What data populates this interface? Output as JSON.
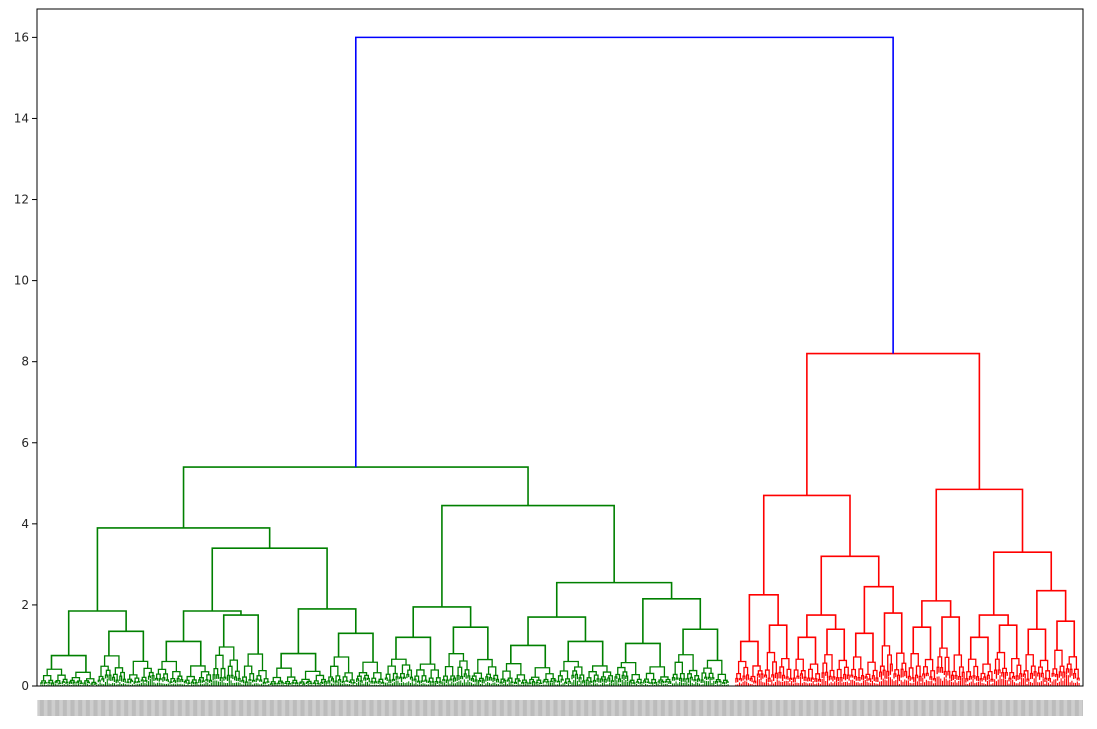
{
  "chart_data": {
    "type": "dendrogram",
    "title": "",
    "xlabel": "",
    "ylabel": "",
    "ylim": [
      0,
      16.7
    ],
    "y_ticks": [
      0,
      2,
      4,
      6,
      8,
      10,
      12,
      14,
      16
    ],
    "grid": false,
    "legend": "none",
    "colors": {
      "top": "#0000ff",
      "cluster_1": "#008000",
      "cluster_2": "#ff0000"
    },
    "root_merge_height": 16.0,
    "clusters": [
      {
        "color": "cluster_1",
        "merge_height": 5.4,
        "children": [
          {
            "merge_height": 3.9,
            "children": [
              {
                "merge_height": 1.85,
                "children": [
                  {
                    "merge_height": 0.75
                  },
                  {
                    "merge_height": 1.35
                  }
                ]
              },
              {
                "merge_height": 3.4,
                "children": [
                  {
                    "merge_height": 1.85,
                    "children": [
                      {
                        "merge_height": 1.1
                      },
                      {
                        "merge_height": 1.75
                      }
                    ]
                  },
                  {
                    "merge_height": 1.9,
                    "children": [
                      {
                        "merge_height": 0.8
                      },
                      {
                        "merge_height": 1.3
                      }
                    ]
                  }
                ]
              }
            ]
          },
          {
            "merge_height": 4.45,
            "children": [
              {
                "merge_height": 1.95,
                "children": [
                  {
                    "merge_height": 1.2
                  },
                  {
                    "merge_height": 1.45
                  }
                ]
              },
              {
                "merge_height": 2.55,
                "children": [
                  {
                    "merge_height": 1.7,
                    "children": [
                      {
                        "merge_height": 1.0
                      },
                      {
                        "merge_height": 1.1
                      }
                    ]
                  },
                  {
                    "merge_height": 2.15,
                    "children": [
                      {
                        "merge_height": 1.05
                      },
                      {
                        "merge_height": 1.4
                      }
                    ]
                  }
                ]
              }
            ]
          }
        ]
      },
      {
        "color": "cluster_2",
        "merge_height": 8.2,
        "children": [
          {
            "merge_height": 4.7,
            "children": [
              {
                "merge_height": 2.25,
                "children": [
                  {
                    "merge_height": 1.1
                  },
                  {
                    "merge_height": 1.5
                  }
                ]
              },
              {
                "merge_height": 3.2,
                "children": [
                  {
                    "merge_height": 1.75,
                    "children": [
                      {
                        "merge_height": 1.2
                      },
                      {
                        "merge_height": 1.4
                      }
                    ]
                  },
                  {
                    "merge_height": 2.45,
                    "children": [
                      {
                        "merge_height": 1.3
                      },
                      {
                        "merge_height": 1.8
                      }
                    ]
                  }
                ]
              }
            ]
          },
          {
            "merge_height": 4.85,
            "children": [
              {
                "merge_height": 2.1,
                "children": [
                  {
                    "merge_height": 1.45
                  },
                  {
                    "merge_height": 1.7
                  }
                ]
              },
              {
                "merge_height": 3.3,
                "children": [
                  {
                    "merge_height": 1.75,
                    "children": [
                      {
                        "merge_height": 1.2
                      },
                      {
                        "merge_height": 1.5
                      }
                    ]
                  },
                  {
                    "merge_height": 2.35,
                    "children": [
                      {
                        "merge_height": 1.4
                      },
                      {
                        "merge_height": 1.6
                      }
                    ]
                  }
                ]
              }
            ]
          }
        ]
      }
    ]
  }
}
